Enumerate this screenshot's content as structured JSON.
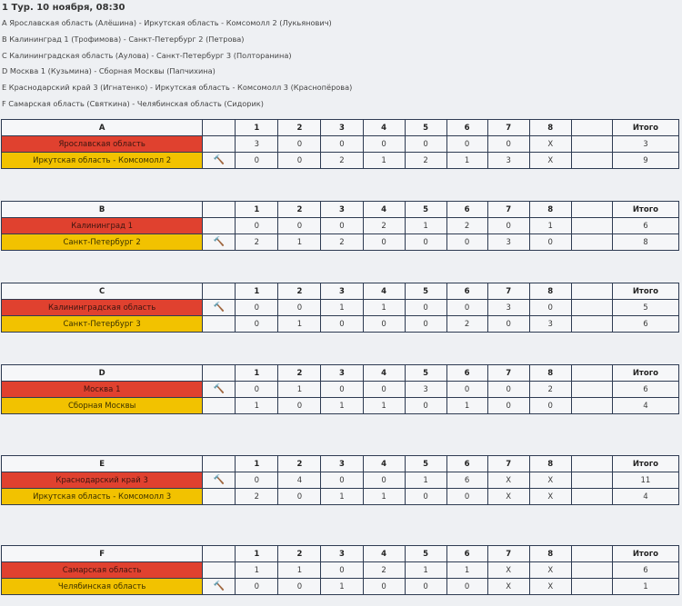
{
  "title": "1 Тур. 10 ноября, 08:30",
  "matches": [
    "A Ярославская область (Алёшина) - Иркутская область - Комсомолл 2 (Лукьянович)",
    "B Калининград 1 (Трофимова) - Санкт-Петербург 2 (Петрова)",
    "C Калининградская область (Аулова) - Санкт-Петербург 3 (Полторанина)",
    "D Москва 1 (Кузьмина) - Сборная Москвы (Папчихина)",
    "E Краснодарский край 3 (Игнатенко) - Иркутская область - Комсомолл 3 (Краснопёрова)",
    "F Самарская область (Святкина) - Челябинская область (Сидорик)"
  ],
  "colors": {
    "team1": "#e0412f",
    "team2": "#f2c200",
    "border": "#2e3b52"
  },
  "total_label": "Итого",
  "ends": [
    "1",
    "2",
    "3",
    "4",
    "5",
    "6",
    "7",
    "8"
  ],
  "groups": [
    {
      "letter": "A",
      "teams": [
        {
          "name": "Ярославская область",
          "hammer": "",
          "scores": [
            "3",
            "0",
            "0",
            "0",
            "0",
            "0",
            "0",
            "X"
          ],
          "extra": "",
          "total": "3"
        },
        {
          "name": "Иркутская область - Комсомолл 2",
          "hammer": "🔨",
          "scores": [
            "0",
            "0",
            "2",
            "1",
            "2",
            "1",
            "3",
            "X"
          ],
          "extra": "",
          "total": "9"
        }
      ]
    },
    {
      "letter": "B",
      "teams": [
        {
          "name": "Калининград 1",
          "hammer": "",
          "scores": [
            "0",
            "0",
            "0",
            "2",
            "1",
            "2",
            "0",
            "1"
          ],
          "extra": "",
          "total": "6"
        },
        {
          "name": "Санкт-Петербург 2",
          "hammer": "🔨",
          "scores": [
            "2",
            "1",
            "2",
            "0",
            "0",
            "0",
            "3",
            "0"
          ],
          "extra": "",
          "total": "8"
        }
      ]
    },
    {
      "letter": "C",
      "teams": [
        {
          "name": "Калининградская область",
          "hammer": "🔨",
          "scores": [
            "0",
            "0",
            "1",
            "1",
            "0",
            "0",
            "3",
            "0"
          ],
          "extra": "",
          "total": "5"
        },
        {
          "name": "Санкт-Петербург 3",
          "hammer": "",
          "scores": [
            "0",
            "1",
            "0",
            "0",
            "0",
            "2",
            "0",
            "3"
          ],
          "extra": "",
          "total": "6"
        }
      ]
    },
    {
      "letter": "D",
      "teams": [
        {
          "name": "Москва 1",
          "hammer": "🔨",
          "scores": [
            "0",
            "1",
            "0",
            "0",
            "3",
            "0",
            "0",
            "2"
          ],
          "extra": "",
          "total": "6"
        },
        {
          "name": "Сборная Москвы",
          "hammer": "",
          "scores": [
            "1",
            "0",
            "1",
            "1",
            "0",
            "1",
            "0",
            "0"
          ],
          "extra": "",
          "total": "4"
        }
      ]
    },
    {
      "letter": "E",
      "teams": [
        {
          "name": "Краснодарский край 3",
          "hammer": "🔨",
          "scores": [
            "0",
            "4",
            "0",
            "0",
            "1",
            "6",
            "X",
            "X"
          ],
          "extra": "",
          "total": "11"
        },
        {
          "name": "Иркутская область - Комсомолл 3",
          "hammer": "",
          "scores": [
            "2",
            "0",
            "1",
            "1",
            "0",
            "0",
            "X",
            "X"
          ],
          "extra": "",
          "total": "4"
        }
      ]
    },
    {
      "letter": "F",
      "teams": [
        {
          "name": "Самарская область",
          "hammer": "",
          "scores": [
            "1",
            "1",
            "0",
            "2",
            "1",
            "1",
            "X",
            "X"
          ],
          "extra": "",
          "total": "6"
        },
        {
          "name": "Челябинская область",
          "hammer": "🔨",
          "scores": [
            "0",
            "0",
            "1",
            "0",
            "0",
            "0",
            "X",
            "X"
          ],
          "extra": "",
          "total": "1"
        }
      ]
    }
  ]
}
